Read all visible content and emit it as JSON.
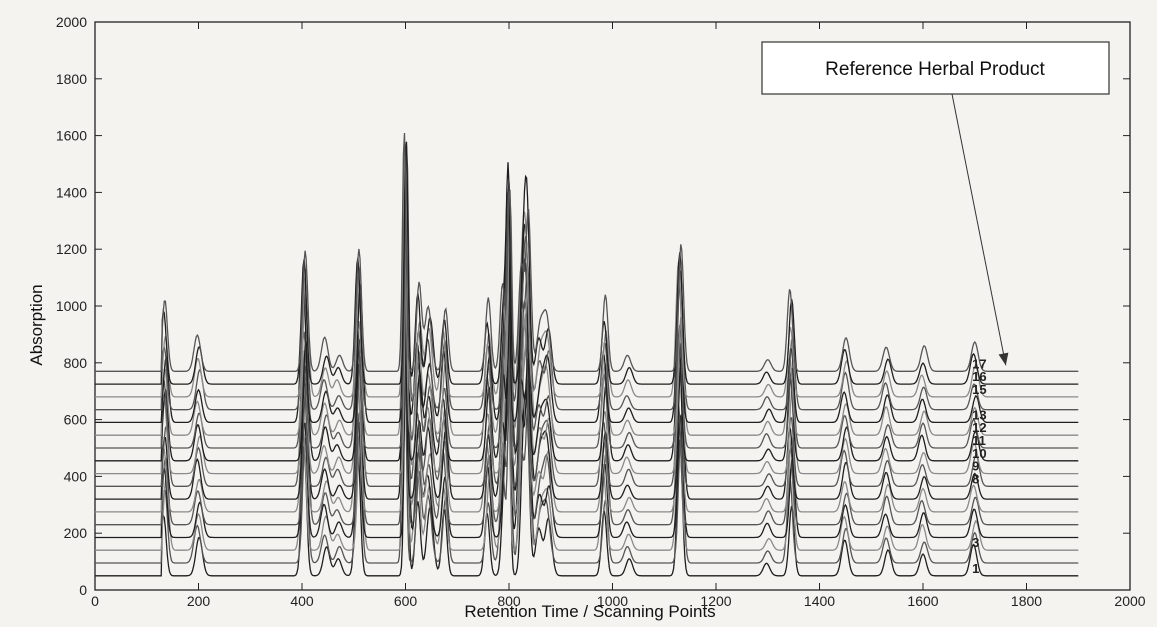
{
  "chart_data": {
    "type": "line",
    "title": "",
    "xlabel": "Retention Time / Scanning Points",
    "ylabel": "Absorption",
    "xlim": [
      0,
      2000
    ],
    "ylim": [
      0,
      2000
    ],
    "x_ticks": [
      "0",
      "200",
      "400",
      "600",
      "800",
      "1000",
      "1200",
      "1400",
      "1600",
      "1800",
      "2000"
    ],
    "y_ticks": [
      "0",
      "200",
      "400",
      "600",
      "800",
      "1000",
      "1200",
      "1400",
      "1600",
      "1800",
      "2000"
    ],
    "x_range": [
      0,
      1900
    ],
    "grid": false,
    "annotation": "Reference Herbal Product",
    "annotation_target_series": "17",
    "series_count": 17,
    "series_offset": 45,
    "visible_series_labels": [
      "17",
      "16",
      "15",
      "13",
      "12",
      "11",
      "10",
      "9",
      "8",
      "3",
      "1"
    ],
    "peaks": [
      {
        "x": 135,
        "height": 260
      },
      {
        "x": 200,
        "height": 140
      },
      {
        "x": 405,
        "height": 500
      },
      {
        "x": 445,
        "height": 120
      },
      {
        "x": 470,
        "height": 60
      },
      {
        "x": 510,
        "height": 490
      },
      {
        "x": 600,
        "height": 1030
      },
      {
        "x": 625,
        "height": 320
      },
      {
        "x": 645,
        "height": 250
      },
      {
        "x": 675,
        "height": 260
      },
      {
        "x": 760,
        "height": 260
      },
      {
        "x": 790,
        "height": 330
      },
      {
        "x": 800,
        "height": 740
      },
      {
        "x": 825,
        "height": 450
      },
      {
        "x": 835,
        "height": 580
      },
      {
        "x": 860,
        "height": 170
      },
      {
        "x": 875,
        "height": 220
      },
      {
        "x": 985,
        "height": 270
      },
      {
        "x": 1030,
        "height": 60
      },
      {
        "x": 1130,
        "height": 510
      },
      {
        "x": 1300,
        "height": 50
      },
      {
        "x": 1345,
        "height": 300
      },
      {
        "x": 1450,
        "height": 130
      },
      {
        "x": 1530,
        "height": 100
      },
      {
        "x": 1600,
        "height": 90
      },
      {
        "x": 1700,
        "height": 110
      }
    ]
  }
}
